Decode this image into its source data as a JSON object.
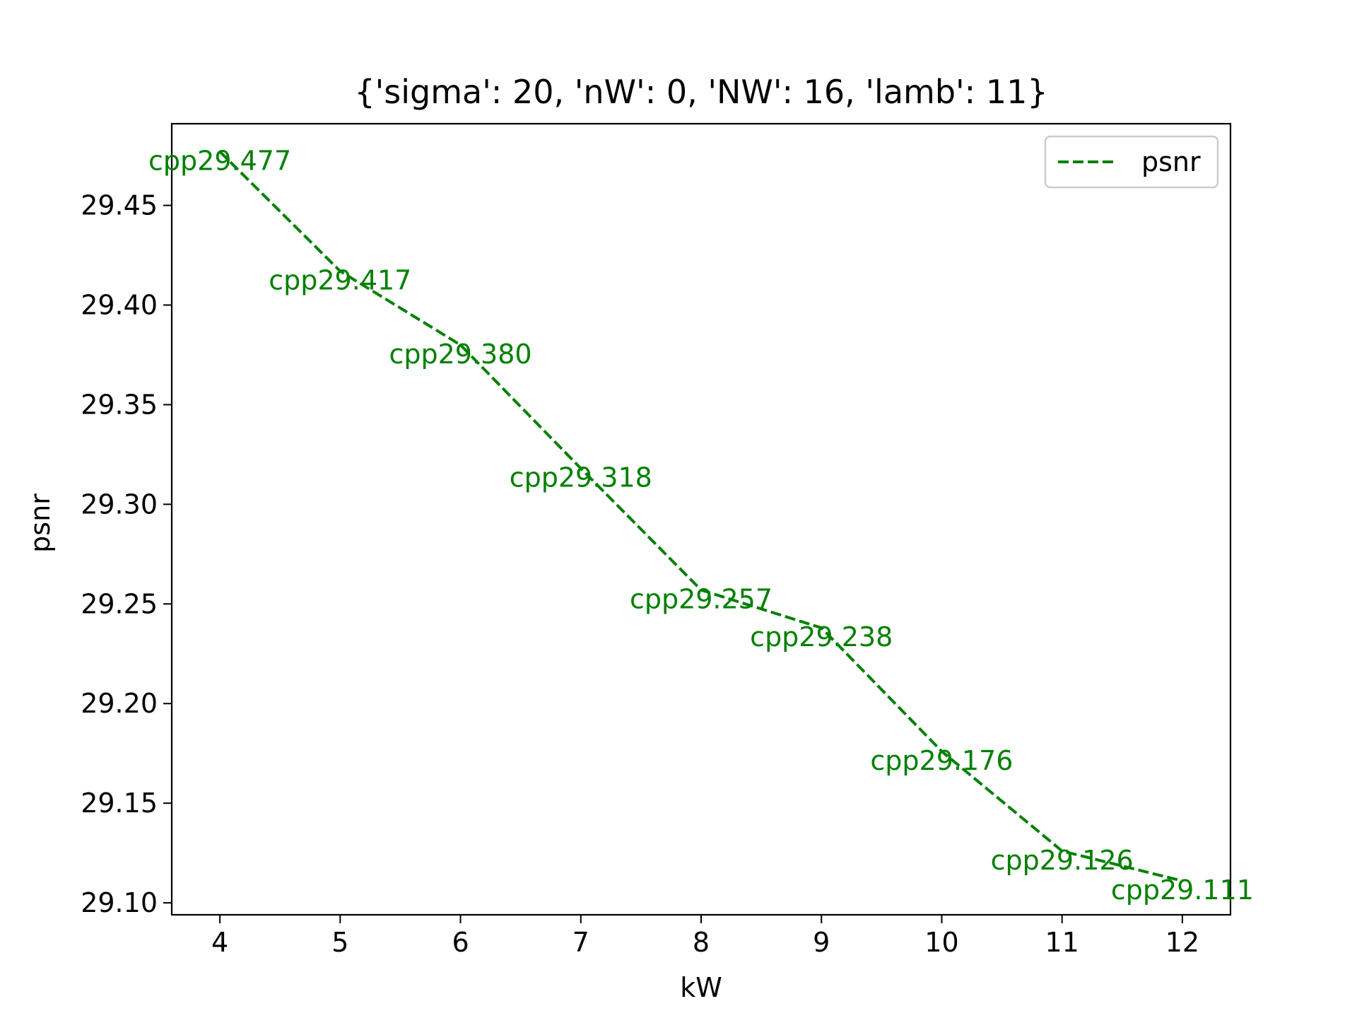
{
  "chart_data": {
    "type": "line",
    "title": "{'sigma': 20, 'nW': 0, 'NW': 16, 'lamb': 11}",
    "xlabel": "kW",
    "ylabel": "psnr",
    "xlim": [
      3.6,
      12.4
    ],
    "ylim": [
      29.094,
      29.491
    ],
    "x_ticks": [
      4,
      5,
      6,
      7,
      8,
      9,
      10,
      11,
      12
    ],
    "x_tick_labels": [
      "4",
      "5",
      "6",
      "7",
      "8",
      "9",
      "10",
      "11",
      "12"
    ],
    "y_ticks": [
      29.1,
      29.15,
      29.2,
      29.25,
      29.3,
      29.35,
      29.4,
      29.45
    ],
    "y_tick_labels": [
      "29.10",
      "29.15",
      "29.20",
      "29.25",
      "29.30",
      "29.35",
      "29.40",
      "29.45"
    ],
    "grid": false,
    "legend_placement": "top-right",
    "series": [
      {
        "name": "psnr",
        "color": "#008000",
        "line_style": "dashed",
        "x": [
          4,
          5,
          6,
          7,
          8,
          9,
          10,
          11,
          12
        ],
        "y": [
          29.477,
          29.417,
          29.38,
          29.318,
          29.257,
          29.238,
          29.176,
          29.126,
          29.111
        ],
        "point_labels": [
          "cpp29.477",
          "cpp29.417",
          "cpp29.380",
          "cpp29.318",
          "cpp29.257",
          "cpp29.238",
          "cpp29.176",
          "cpp29.126",
          "cpp29.111"
        ]
      }
    ]
  }
}
